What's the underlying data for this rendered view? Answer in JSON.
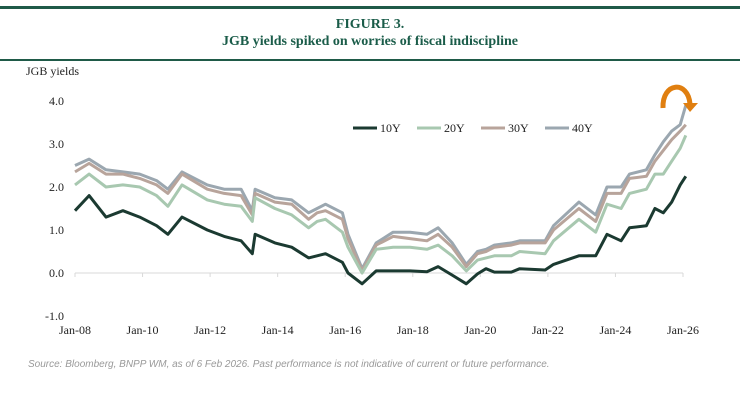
{
  "header": {
    "figure_label": "FIGURE 3.",
    "title": "JGB yields spiked on worries of fiscal indiscipline"
  },
  "source": "Source: Bloomberg, BNPP WM, as of 6 Feb 2026. Past performance is not indicative of current or future performance.",
  "chart_data": {
    "type": "line",
    "title": "JGB yields spiked on worries of fiscal indiscipline",
    "ylabel": "JGB yields",
    "xlabel": "",
    "ylim": [
      -1.0,
      4.0
    ],
    "yticks": [
      "-1.0",
      "0.0",
      "1.0",
      "2.0",
      "3.0",
      "4.0"
    ],
    "xlim": [
      "2008-01",
      "2026-01"
    ],
    "xticks": [
      "Jan-08",
      "Jan-10",
      "Jan-12",
      "Jan-14",
      "Jan-16",
      "Jan-18",
      "Jan-20",
      "Jan-22",
      "Jan-24",
      "Jan-26"
    ],
    "grid": false,
    "legend": "top-center",
    "annotation": "orange curved arrow at latest 40Y spike",
    "x": [
      "2008-01",
      "2008-06",
      "2008-12",
      "2009-06",
      "2009-12",
      "2010-06",
      "2010-10",
      "2011-03",
      "2011-12",
      "2012-06",
      "2012-12",
      "2013-04",
      "2013-05",
      "2013-12",
      "2014-06",
      "2014-12",
      "2015-03",
      "2015-06",
      "2015-12",
      "2016-02",
      "2016-07",
      "2016-12",
      "2017-06",
      "2017-12",
      "2018-06",
      "2018-10",
      "2019-03",
      "2019-08",
      "2019-12",
      "2020-03",
      "2020-06",
      "2020-12",
      "2021-03",
      "2021-12",
      "2022-03",
      "2022-12",
      "2023-06",
      "2023-10",
      "2024-03",
      "2024-06",
      "2024-12",
      "2025-03",
      "2025-06",
      "2025-09",
      "2025-12",
      "2026-02"
    ],
    "series": [
      {
        "name": "10Y",
        "color": "#1b3a31",
        "values": [
          1.45,
          1.8,
          1.3,
          1.45,
          1.3,
          1.1,
          0.9,
          1.3,
          1.0,
          0.85,
          0.75,
          0.45,
          0.9,
          0.7,
          0.6,
          0.35,
          0.4,
          0.45,
          0.25,
          0.0,
          -0.25,
          0.05,
          0.05,
          0.05,
          0.03,
          0.15,
          -0.05,
          -0.25,
          -0.02,
          0.1,
          0.02,
          0.02,
          0.1,
          0.07,
          0.2,
          0.4,
          0.4,
          0.9,
          0.75,
          1.05,
          1.1,
          1.5,
          1.4,
          1.65,
          2.05,
          2.25
        ]
      },
      {
        "name": "20Y",
        "color": "#a8c8b0",
        "values": [
          2.05,
          2.3,
          2.0,
          2.05,
          2.0,
          1.8,
          1.55,
          2.05,
          1.7,
          1.6,
          1.55,
          1.2,
          1.75,
          1.5,
          1.35,
          1.05,
          1.2,
          1.25,
          0.95,
          0.6,
          0.0,
          0.55,
          0.6,
          0.6,
          0.55,
          0.65,
          0.4,
          0.05,
          0.3,
          0.35,
          0.4,
          0.4,
          0.5,
          0.45,
          0.75,
          1.25,
          0.95,
          1.6,
          1.5,
          1.85,
          1.95,
          2.3,
          2.3,
          2.6,
          2.9,
          3.2
        ]
      },
      {
        "name": "30Y",
        "color": "#b8a49b",
        "values": [
          2.35,
          2.55,
          2.3,
          2.3,
          2.2,
          2.05,
          1.85,
          2.3,
          1.95,
          1.85,
          1.8,
          1.35,
          1.85,
          1.65,
          1.6,
          1.25,
          1.4,
          1.45,
          1.25,
          0.8,
          0.05,
          0.65,
          0.85,
          0.8,
          0.75,
          0.9,
          0.6,
          0.15,
          0.45,
          0.5,
          0.6,
          0.65,
          0.7,
          0.7,
          1.0,
          1.5,
          1.2,
          1.85,
          1.85,
          2.2,
          2.25,
          2.6,
          2.85,
          3.1,
          3.3,
          3.45
        ]
      },
      {
        "name": "40Y",
        "color": "#9ba7b0",
        "values": [
          2.5,
          2.65,
          2.4,
          2.35,
          2.3,
          2.15,
          1.95,
          2.35,
          2.05,
          1.95,
          1.95,
          1.45,
          1.95,
          1.75,
          1.7,
          1.4,
          1.5,
          1.6,
          1.4,
          0.9,
          0.1,
          0.7,
          0.95,
          0.95,
          0.9,
          1.05,
          0.7,
          0.2,
          0.5,
          0.55,
          0.65,
          0.7,
          0.75,
          0.75,
          1.1,
          1.65,
          1.35,
          2.0,
          2.0,
          2.3,
          2.4,
          2.75,
          3.05,
          3.3,
          3.45,
          3.9
        ]
      }
    ]
  },
  "colors": {
    "title": "#1a5c49",
    "rule": "#1f5a48",
    "arrow": "#e07f10"
  }
}
